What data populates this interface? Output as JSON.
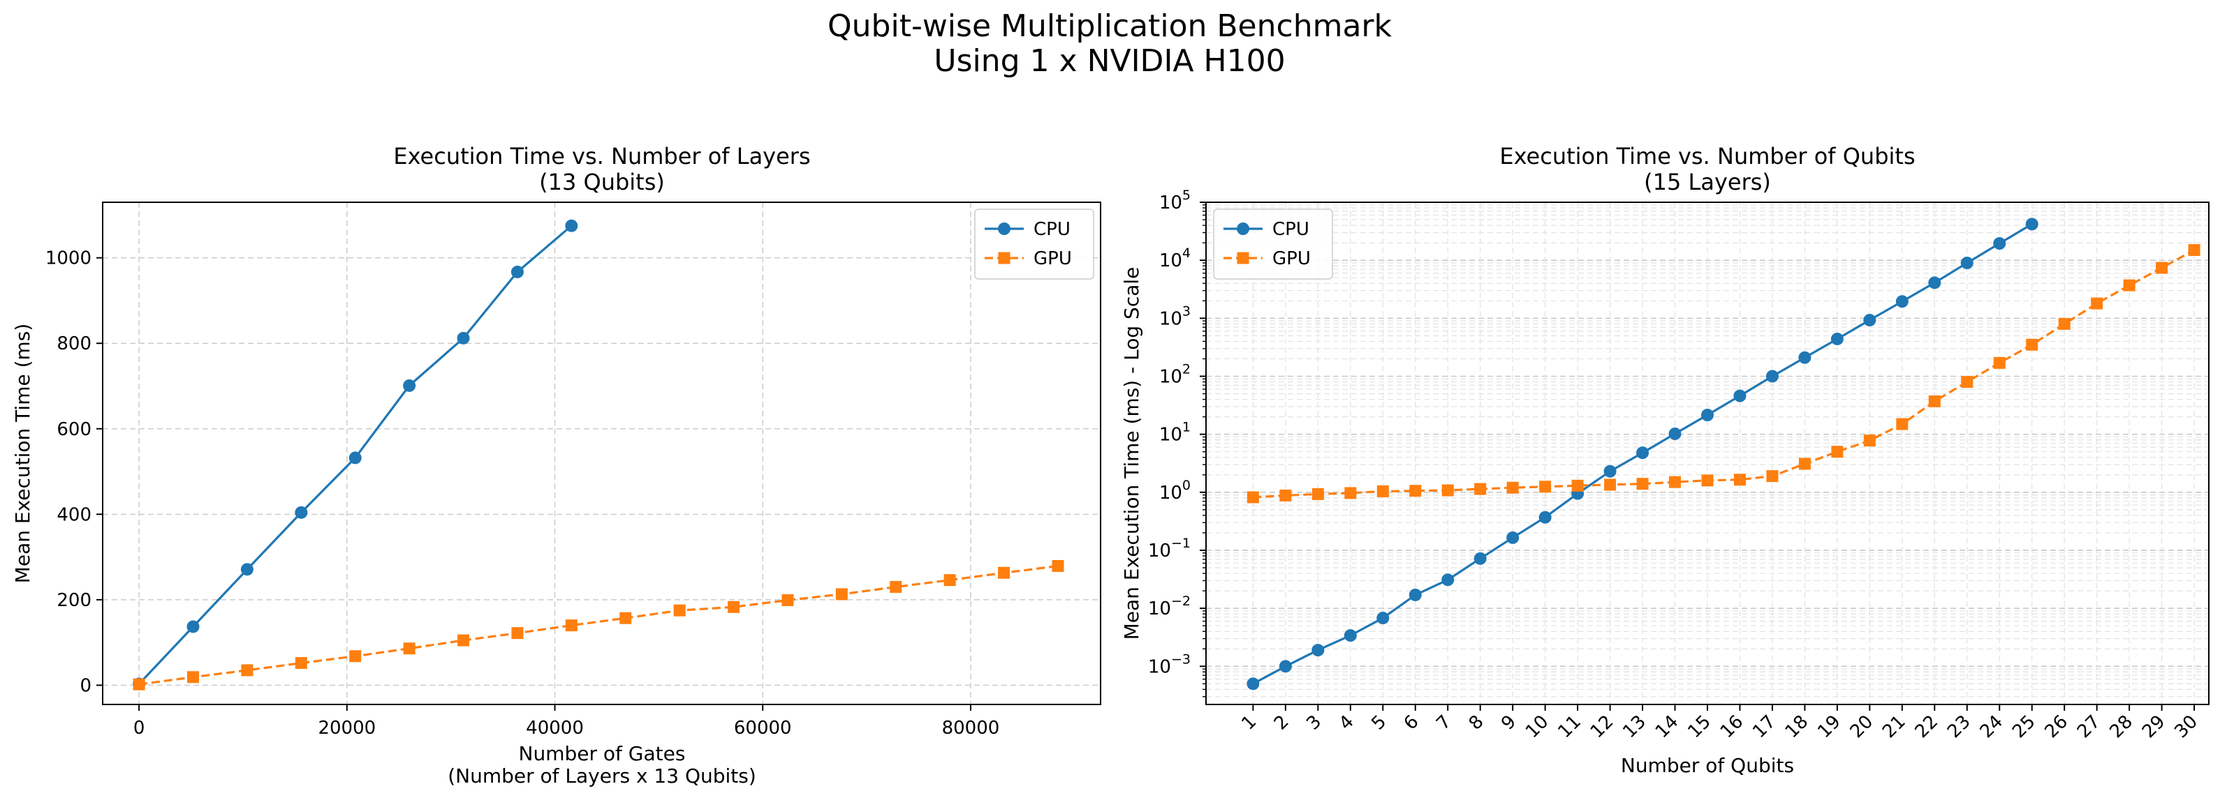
{
  "figure": {
    "title_line1": "Qubit-wise Multiplication Benchmark",
    "title_line2": "Using 1 x NVIDIA H100"
  },
  "colors": {
    "cpu": "#1f77b4",
    "gpu": "#ff7f0e",
    "grid": "#cccccc"
  },
  "chart_data": [
    {
      "type": "line",
      "title_line1": "Execution Time vs. Number of Layers",
      "title_line2": "(13 Qubits)",
      "xlabel_line1": "Number of Gates",
      "xlabel_line2": "(Number of Layers x 13 Qubits)",
      "ylabel": "Mean Execution Time (ms)",
      "xlim": [
        -3500,
        92500
      ],
      "ylim": [
        -45,
        1130
      ],
      "xticks": [
        0,
        20000,
        40000,
        60000,
        80000
      ],
      "xtick_labels": [
        "0",
        "20000",
        "40000",
        "60000",
        "80000"
      ],
      "yticks": [
        0,
        200,
        400,
        600,
        800,
        1000
      ],
      "ytick_labels": [
        "0",
        "200",
        "400",
        "600",
        "800",
        "1000"
      ],
      "grid": true,
      "legend_position": "top-right",
      "series": [
        {
          "name": "CPU",
          "marker": "circle",
          "linestyle": "solid",
          "x": [
            0,
            5200,
            10400,
            15600,
            20800,
            26000,
            31200,
            36400,
            41600
          ],
          "y": [
            3,
            137,
            271,
            404,
            532,
            701,
            812,
            967,
            1075
          ]
        },
        {
          "name": "GPU",
          "marker": "square",
          "linestyle": "dashed",
          "x": [
            0,
            5200,
            10400,
            15600,
            20800,
            26000,
            31200,
            36400,
            41600,
            46800,
            52000,
            57200,
            62400,
            67600,
            72800,
            78000,
            83200,
            88400
          ],
          "y": [
            2,
            19,
            35,
            52,
            68,
            86,
            105,
            122,
            140,
            157,
            175,
            183,
            199,
            213,
            230,
            246,
            263,
            279
          ]
        }
      ]
    },
    {
      "type": "line",
      "title_line1": "Execution Time vs. Number of Qubits",
      "title_line2": "(15 Layers)",
      "xlabel": "Number of Qubits",
      "ylabel": "Mean Execution Time (ms) - Log Scale",
      "yscale": "log",
      "xlim": [
        -0.45,
        30.45
      ],
      "ylim": [
        0.00022,
        100000
      ],
      "xticks": [
        1,
        2,
        3,
        4,
        5,
        6,
        7,
        8,
        9,
        10,
        11,
        12,
        13,
        14,
        15,
        16,
        17,
        18,
        19,
        20,
        21,
        22,
        23,
        24,
        25,
        26,
        27,
        28,
        29,
        30
      ],
      "xtick_labels": [
        "1",
        "2",
        "3",
        "4",
        "5",
        "6",
        "7",
        "8",
        "9",
        "10",
        "11",
        "12",
        "13",
        "14",
        "15",
        "16",
        "17",
        "18",
        "19",
        "20",
        "21",
        "22",
        "23",
        "24",
        "25",
        "26",
        "27",
        "28",
        "29",
        "30"
      ],
      "yticks_exponents": [
        -3,
        -2,
        -1,
        0,
        1,
        2,
        3,
        4,
        5
      ],
      "ytick_base": "10",
      "grid": true,
      "legend_position": "top-left",
      "series": [
        {
          "name": "CPU",
          "marker": "circle",
          "linestyle": "solid",
          "x": [
            1,
            2,
            3,
            4,
            5,
            6,
            7,
            8,
            9,
            10,
            11,
            12,
            13,
            14,
            15,
            16,
            17,
            18,
            19,
            20,
            21,
            22,
            23,
            24,
            25
          ],
          "y": [
            0.0005,
            0.001,
            0.0019,
            0.0034,
            0.0068,
            0.017,
            0.031,
            0.072,
            0.165,
            0.37,
            0.95,
            2.3,
            4.8,
            10.2,
            21.5,
            46,
            100,
            210,
            440,
            930,
            1950,
            4100,
            9000,
            19500,
            42000
          ]
        },
        {
          "name": "GPU",
          "marker": "square",
          "linestyle": "dashed",
          "x": [
            1,
            2,
            3,
            4,
            5,
            6,
            7,
            8,
            9,
            10,
            11,
            12,
            13,
            14,
            15,
            16,
            17,
            18,
            19,
            20,
            21,
            22,
            23,
            24,
            25,
            26,
            27,
            28,
            29,
            30
          ],
          "y": [
            0.82,
            0.88,
            0.93,
            0.97,
            1.04,
            1.06,
            1.08,
            1.14,
            1.2,
            1.25,
            1.3,
            1.35,
            1.4,
            1.5,
            1.6,
            1.65,
            1.9,
            3.1,
            5.0,
            7.8,
            15,
            37,
            80,
            170,
            350,
            800,
            1800,
            3700,
            7400,
            15000
          ]
        }
      ]
    }
  ]
}
